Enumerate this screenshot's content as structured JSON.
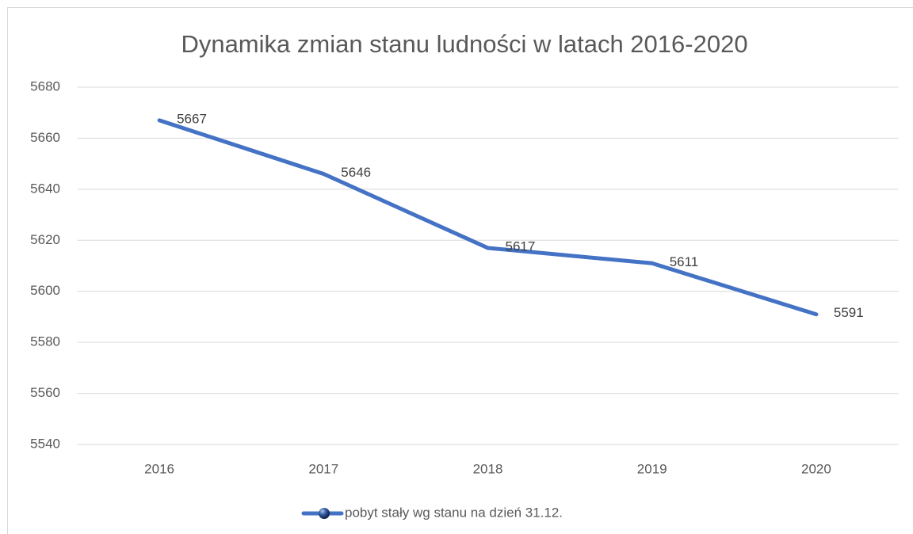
{
  "chart_data": {
    "type": "line",
    "title": "Dynamika zmian stanu ludności w latach 2016-2020",
    "categories": [
      "2016",
      "2017",
      "2018",
      "2019",
      "2020"
    ],
    "series": [
      {
        "name": "pobyt stały wg stanu na dzień 31.12.",
        "color": "#4472c4",
        "values": [
          5667,
          5646,
          5617,
          5611,
          5591
        ]
      }
    ],
    "ylim": [
      5540,
      5680
    ],
    "yticks": [
      5540,
      5560,
      5580,
      5600,
      5620,
      5640,
      5660,
      5680
    ],
    "grid": true,
    "legend": "bottom"
  }
}
